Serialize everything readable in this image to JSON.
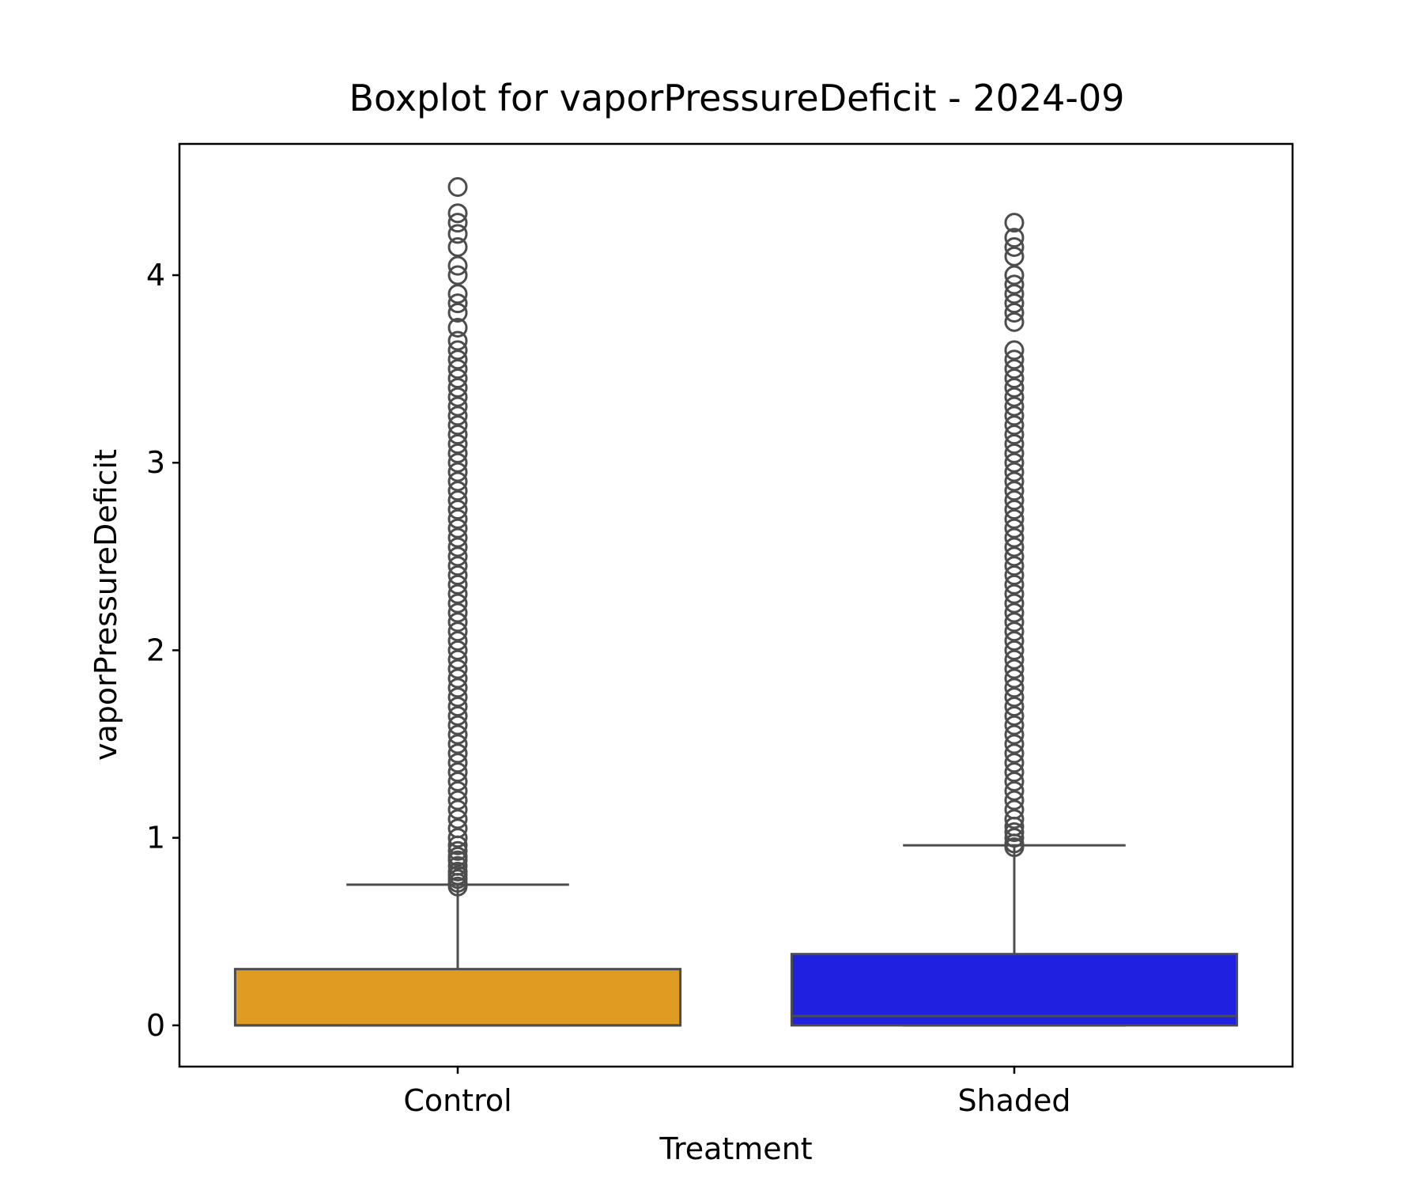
{
  "chart_data": {
    "type": "box",
    "title": "Boxplot for vaporPressureDeficit - 2024-09",
    "xlabel": "Treatment",
    "ylabel": "vaporPressureDeficit",
    "ylim": [
      -0.22,
      4.7
    ],
    "yticks": [
      0,
      1,
      2,
      3,
      4
    ],
    "ytick_labels": [
      "0",
      "1",
      "2",
      "3",
      "4"
    ],
    "categories": [
      "Control",
      "Shaded"
    ],
    "grid": false,
    "legend": "none",
    "series": [
      {
        "category": "Control",
        "color": "#e09c22",
        "whisker_low": 0,
        "q1": 0,
        "median": 0,
        "q3": 0.3,
        "whisker_high": 0.75,
        "outliers": [
          0.74,
          0.76,
          0.78,
          0.8,
          0.82,
          0.85,
          0.88,
          0.9,
          0.93,
          0.96,
          1.0,
          1.05,
          1.1,
          1.15,
          1.2,
          1.25,
          1.3,
          1.35,
          1.4,
          1.45,
          1.5,
          1.55,
          1.6,
          1.65,
          1.7,
          1.75,
          1.8,
          1.85,
          1.9,
          1.95,
          2.0,
          2.05,
          2.1,
          2.15,
          2.2,
          2.25,
          2.3,
          2.35,
          2.4,
          2.45,
          2.5,
          2.55,
          2.6,
          2.65,
          2.7,
          2.75,
          2.8,
          2.85,
          2.9,
          2.95,
          3.0,
          3.05,
          3.1,
          3.15,
          3.2,
          3.25,
          3.3,
          3.35,
          3.4,
          3.45,
          3.5,
          3.55,
          3.6,
          3.65,
          3.72,
          3.8,
          3.85,
          3.9,
          4.0,
          4.05,
          4.15,
          4.22,
          4.28,
          4.33,
          4.47
        ]
      },
      {
        "category": "Shaded",
        "color": "#2020e0",
        "whisker_low": 0,
        "q1": 0,
        "median": 0.05,
        "q3": 0.38,
        "whisker_high": 0.96,
        "outliers": [
          0.95,
          0.97,
          1.0,
          1.03,
          1.06,
          1.1,
          1.15,
          1.2,
          1.25,
          1.3,
          1.35,
          1.4,
          1.45,
          1.5,
          1.55,
          1.6,
          1.65,
          1.7,
          1.75,
          1.8,
          1.85,
          1.9,
          1.95,
          2.0,
          2.05,
          2.1,
          2.15,
          2.2,
          2.25,
          2.3,
          2.35,
          2.4,
          2.45,
          2.5,
          2.55,
          2.6,
          2.65,
          2.7,
          2.75,
          2.8,
          2.85,
          2.9,
          2.95,
          3.0,
          3.05,
          3.1,
          3.15,
          3.2,
          3.25,
          3.3,
          3.35,
          3.4,
          3.45,
          3.5,
          3.55,
          3.6,
          3.75,
          3.8,
          3.85,
          3.9,
          3.95,
          4.0,
          4.1,
          4.15,
          4.2,
          4.28
        ]
      }
    ]
  }
}
